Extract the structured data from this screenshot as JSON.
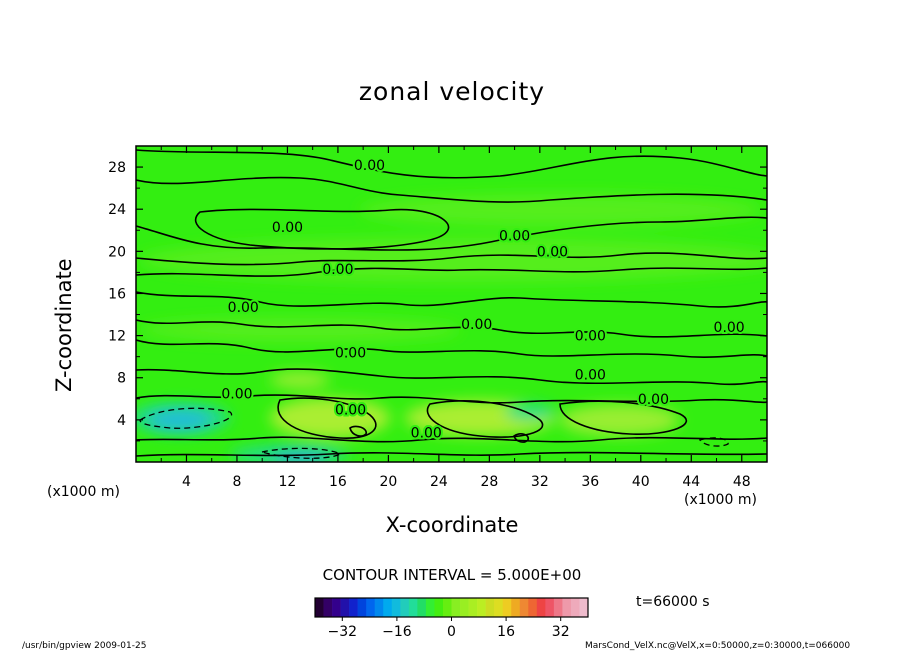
{
  "footer": {
    "left": "/usr/bin/gpview   2009-01-25",
    "right": "MarsCond_VelX.nc@VelX,x=0:50000,z=0:30000,t=066000"
  },
  "colors": {
    "field_base": "#33ee11",
    "field_light": "#77ee22",
    "field_yellow": "#bbee33",
    "field_cyan": "#22dd88",
    "field_blue": "#22bbdd",
    "contour": "#000000"
  },
  "chart_data": {
    "type": "contour",
    "title": "zonal velocity",
    "xlabel": "X-coordinate",
    "ylabel": "Z-coordinate",
    "x_unit_label": "(x1000 m)",
    "xlim": [
      0,
      50
    ],
    "ylim": [
      0,
      30
    ],
    "x_ticks": [
      "4",
      "8",
      "12",
      "16",
      "20",
      "24",
      "28",
      "32",
      "36",
      "40",
      "44",
      "48"
    ],
    "y_ticks": [
      "4",
      "8",
      "12",
      "16",
      "20",
      "24",
      "28"
    ],
    "contour_interval_text": "CONTOUR INTERVAL = 5.000E+00",
    "contour_labels": [
      {
        "text": "0.00",
        "x": 18.5,
        "z": 28.2
      },
      {
        "text": "0.00",
        "x": 12.0,
        "z": 22.3
      },
      {
        "text": "0.00",
        "x": 30.0,
        "z": 21.5
      },
      {
        "text": "0.00",
        "x": 33.0,
        "z": 20.0
      },
      {
        "text": "0.00",
        "x": 16.0,
        "z": 18.3
      },
      {
        "text": "0.00",
        "x": 8.5,
        "z": 14.7
      },
      {
        "text": "0.00",
        "x": 27.0,
        "z": 13.1
      },
      {
        "text": "0.00",
        "x": 36.0,
        "z": 12.0
      },
      {
        "text": "0.00",
        "x": 47.0,
        "z": 12.8
      },
      {
        "text": "0.00",
        "x": 17.0,
        "z": 10.4
      },
      {
        "text": "0.00",
        "x": 36.0,
        "z": 8.3
      },
      {
        "text": "0.00",
        "x": 8.0,
        "z": 6.5
      },
      {
        "text": "0.00",
        "x": 17.0,
        "z": 5.0
      },
      {
        "text": "0.00",
        "x": 23.0,
        "z": 2.8
      },
      {
        "text": "0.00",
        "x": 41.0,
        "z": 6.0
      }
    ],
    "colorbar": {
      "min": -40,
      "max": 40,
      "ticks": [
        "-32",
        "-16",
        "0",
        "16",
        "32"
      ],
      "colors": [
        "#220033",
        "#330066",
        "#33008c",
        "#2211aa",
        "#1122cc",
        "#0044dd",
        "#0066ee",
        "#0088ee",
        "#00aaee",
        "#11bbdd",
        "#22ccbb",
        "#22dd99",
        "#22dd66",
        "#33ee33",
        "#44ee11",
        "#66ee11",
        "#88ee22",
        "#99ee22",
        "#aaee22",
        "#bbee22",
        "#ccdd22",
        "#dddd22",
        "#eecc22",
        "#eeaa22",
        "#ee8833",
        "#ee6633",
        "#ee4444",
        "#ee5566",
        "#ee7788",
        "#ee99aa",
        "#eeaabb",
        "#eebbcc"
      ]
    },
    "time_label": "t=66000 s"
  }
}
